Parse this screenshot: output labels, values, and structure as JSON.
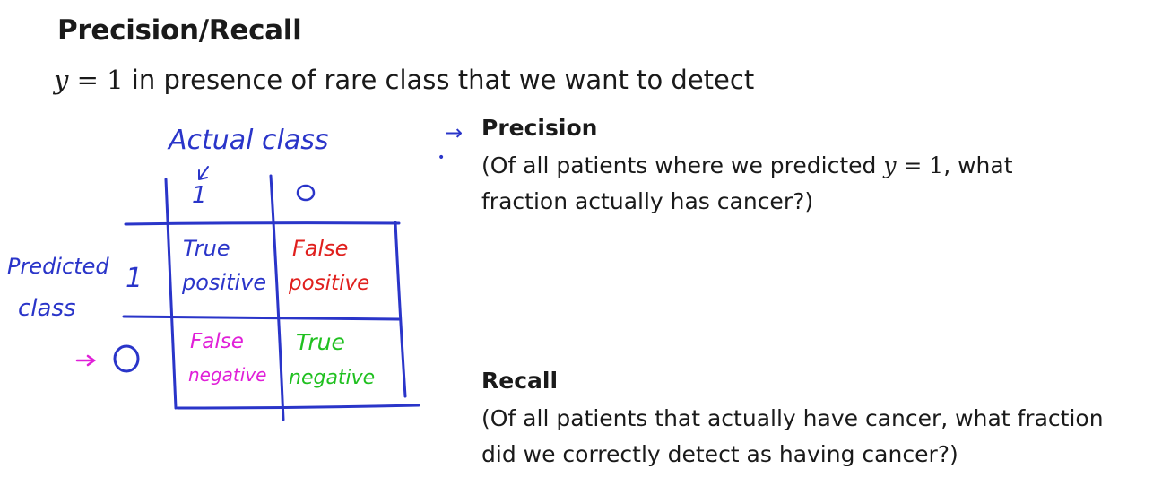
{
  "title": "Precision/Recall",
  "subtitle": {
    "math_y": "y",
    "math_eq": " = 1",
    "text": " in presence of rare class that we want to detect"
  },
  "matrix": {
    "actual_label": "Actual class",
    "actual_one": "1",
    "actual_zero": "0",
    "predicted_label_1": "Predicted",
    "predicted_label_2": "class",
    "predicted_one": "1",
    "predicted_zero": "0",
    "cells": {
      "tp_1": "True",
      "tp_2": "positive",
      "fp_1": "False",
      "fp_2": "positive",
      "fn_1": "False",
      "fn_2": "negative",
      "tn_1": "True",
      "tn_2": "negative"
    },
    "colors": {
      "ink": "#2a35c9",
      "tp": "#2a35c9",
      "fp": "#e0201e",
      "fn": "#e020d8",
      "tn": "#20c020"
    }
  },
  "precision": {
    "heading": "Precision",
    "line1_a": "(Of all patients where we predicted ",
    "line1_math_y": "y",
    "line1_math_eq": " = 1",
    "line1_b": ", what",
    "line2": "fraction actually has cancer?)"
  },
  "recall": {
    "heading": "Recall",
    "line1": "(Of all patients that actually have cancer, what fraction",
    "line2": "did we correctly detect as having cancer?)"
  }
}
